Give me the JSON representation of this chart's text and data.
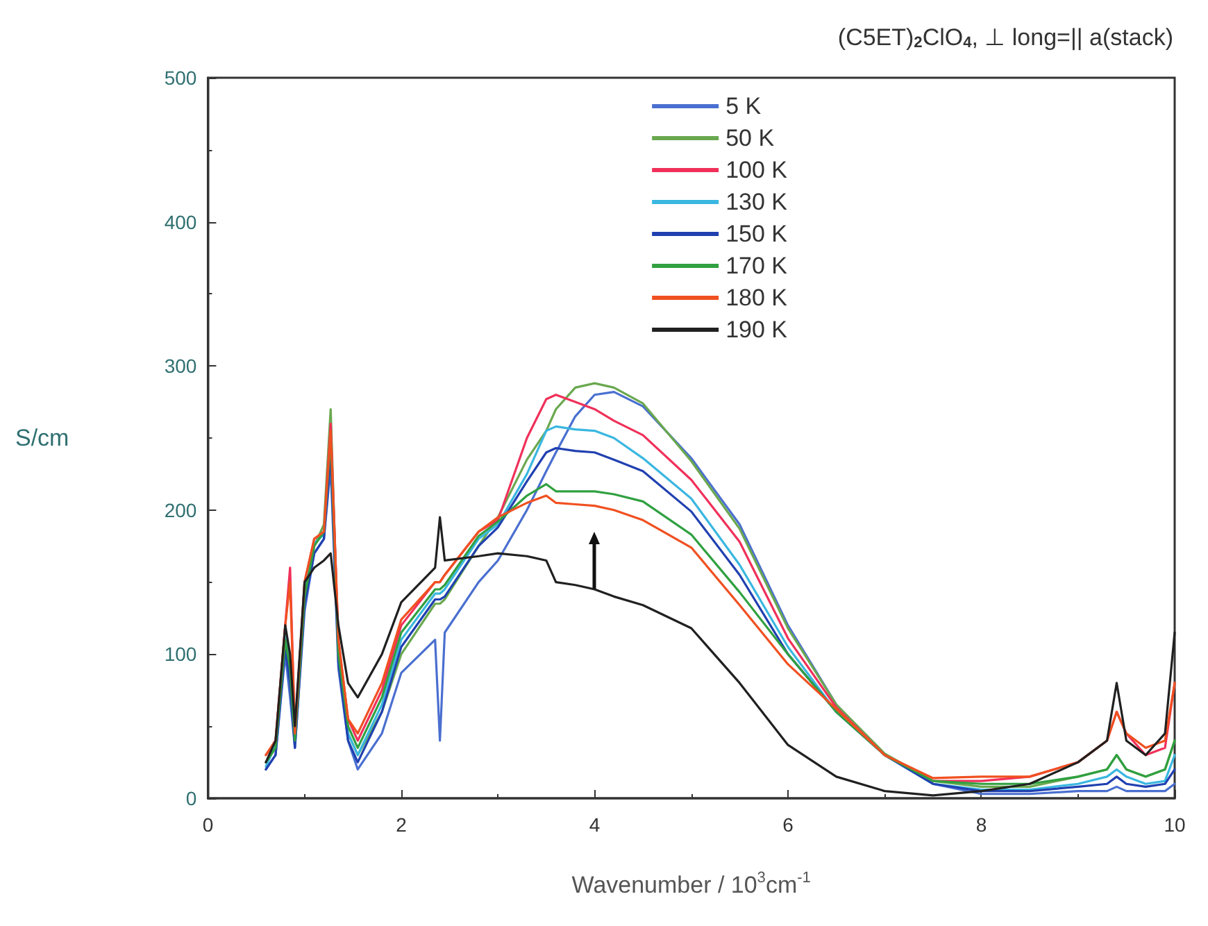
{
  "chart_data": {
    "type": "line",
    "legend_title": "(C5ET)$_{2}$ClO$_{4}$, ⊥ long=|| a(stack)",
    "xlabel": "Wavenumber / 10$^{3}$cm$^{-1}$",
    "ylabel": "S/cm",
    "x": [
      0.6,
      0.7,
      0.8,
      0.85,
      0.9,
      1.0,
      1.1,
      1.2,
      1.27,
      1.35,
      1.45,
      1.55,
      1.8,
      2.0,
      2.35,
      2.4,
      2.45,
      2.8,
      3.0,
      3.3,
      3.5,
      3.6,
      3.8,
      4.0,
      4.2,
      4.5,
      5.0,
      5.5,
      6.0,
      6.5,
      7.0,
      7.5,
      8.0,
      8.5,
      9.0,
      9.3,
      9.4,
      9.5,
      9.7,
      9.9,
      10.0
    ],
    "series": [
      {
        "name": "5 K",
        "color": "#4a6fd0",
        "values": [
          20,
          30,
          100,
          70,
          35,
          130,
          170,
          180,
          230,
          90,
          40,
          20,
          45,
          87,
          110,
          40,
          115,
          150,
          165,
          200,
          227,
          240,
          265,
          280,
          282,
          272,
          236,
          190,
          120,
          65,
          30,
          10,
          3,
          3,
          5,
          5,
          8,
          5,
          5,
          5,
          10
        ]
      },
      {
        "name": "50 K",
        "color": "#6aa84f",
        "values": [
          25,
          35,
          110,
          80,
          40,
          140,
          175,
          190,
          270,
          100,
          45,
          30,
          60,
          100,
          135,
          135,
          138,
          175,
          195,
          235,
          255,
          270,
          285,
          288,
          285,
          274,
          234,
          187,
          118,
          65,
          31,
          12,
          8,
          8,
          15,
          20,
          30,
          20,
          15,
          20,
          40
        ]
      },
      {
        "name": "100 K",
        "color": "#f0305a",
        "values": [
          30,
          40,
          120,
          160,
          45,
          150,
          180,
          185,
          260,
          110,
          55,
          40,
          75,
          120,
          150,
          150,
          155,
          185,
          193,
          250,
          277,
          280,
          275,
          270,
          262,
          252,
          221,
          178,
          111,
          63,
          30,
          12,
          12,
          15,
          25,
          40,
          60,
          45,
          30,
          35,
          80
        ]
      },
      {
        "name": "130 K",
        "color": "#3ab7e0",
        "values": [
          22,
          37,
          112,
          95,
          42,
          143,
          177,
          183,
          252,
          100,
          45,
          30,
          65,
          110,
          142,
          142,
          145,
          180,
          190,
          225,
          255,
          258,
          256,
          255,
          250,
          236,
          208,
          162,
          105,
          60,
          30,
          10,
          6,
          6,
          10,
          15,
          20,
          15,
          10,
          12,
          30
        ]
      },
      {
        "name": "150 K",
        "color": "#2040b0",
        "values": [
          20,
          30,
          105,
          80,
          35,
          135,
          170,
          180,
          240,
          95,
          40,
          25,
          60,
          105,
          138,
          138,
          140,
          175,
          188,
          220,
          240,
          243,
          241,
          240,
          235,
          227,
          199,
          155,
          100,
          60,
          30,
          10,
          5,
          5,
          8,
          10,
          15,
          10,
          8,
          10,
          20
        ]
      },
      {
        "name": "170 K",
        "color": "#30a040",
        "values": [
          25,
          35,
          110,
          90,
          40,
          140,
          175,
          185,
          250,
          100,
          50,
          35,
          70,
          115,
          145,
          145,
          148,
          182,
          192,
          210,
          218,
          213,
          213,
          213,
          211,
          206,
          183,
          143,
          100,
          60,
          30,
          12,
          10,
          10,
          15,
          20,
          30,
          20,
          15,
          20,
          40
        ]
      },
      {
        "name": "180 K",
        "color": "#f05020",
        "values": [
          30,
          40,
          120,
          150,
          45,
          150,
          180,
          185,
          255,
          110,
          55,
          45,
          80,
          124,
          150,
          150,
          155,
          185,
          195,
          205,
          210,
          205,
          204,
          203,
          200,
          193,
          174,
          134,
          93,
          62,
          30,
          14,
          15,
          15,
          25,
          40,
          60,
          45,
          35,
          40,
          80
        ]
      },
      {
        "name": "190 K",
        "color": "#202020",
        "values": [
          25,
          40,
          120,
          100,
          50,
          150,
          160,
          165,
          170,
          120,
          80,
          70,
          100,
          136,
          160,
          195,
          165,
          168,
          170,
          168,
          165,
          150,
          148,
          145,
          140,
          134,
          118,
          80,
          37,
          15,
          5,
          2,
          5,
          10,
          25,
          40,
          80,
          40,
          30,
          45,
          115
        ]
      }
    ],
    "xlim": [
      0,
      10
    ],
    "xticks": [
      0,
      2,
      4,
      6,
      8,
      10
    ],
    "ylim": [
      0,
      500
    ],
    "yticks": [
      0,
      100,
      200,
      300,
      400,
      500
    ],
    "grid": false,
    "legend": "top right",
    "marker": "none",
    "line_style": "solid"
  }
}
